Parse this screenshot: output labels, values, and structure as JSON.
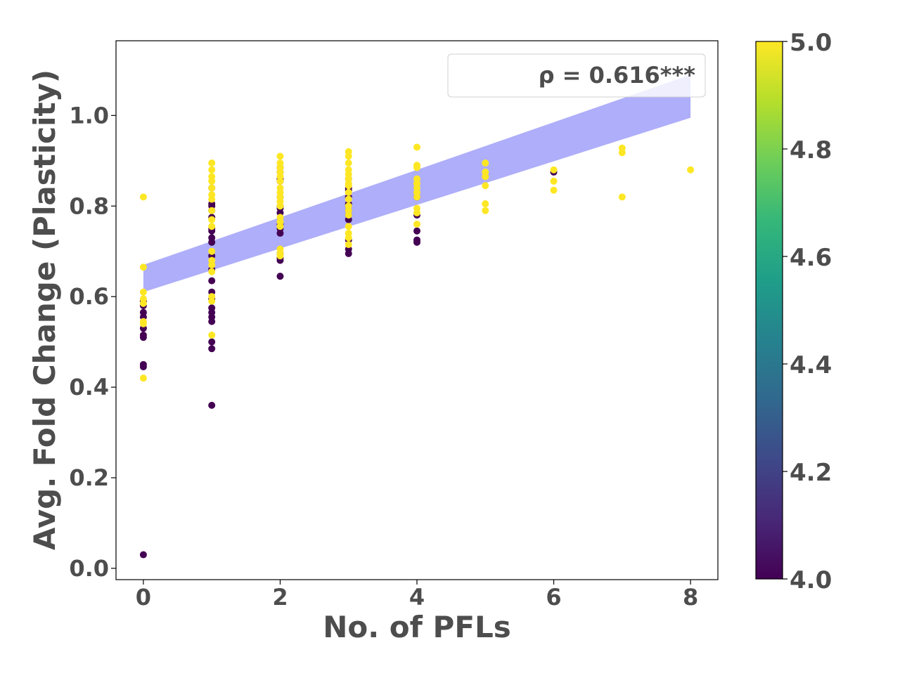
{
  "chart_data": {
    "type": "scatter",
    "xlabel": "No. of PFLs",
    "ylabel": "Avg. Fold Change (Plasticity)",
    "xlim": [
      -0.4,
      8.4
    ],
    "ylim": [
      -0.025,
      1.165
    ],
    "xticks": [
      0,
      2,
      4,
      6,
      8
    ],
    "yticks": [
      0.0,
      0.2,
      0.4,
      0.6,
      0.8,
      1.0
    ],
    "xtick_labels": [
      "0",
      "2",
      "4",
      "6",
      "8"
    ],
    "ytick_labels": [
      "0.0",
      "0.2",
      "0.4",
      "0.6",
      "0.8",
      "1.0"
    ],
    "annotation": "ρ = 0.616***",
    "grid": false,
    "colormap": "viridis",
    "colorbar": {
      "min": 4.0,
      "max": 5.0,
      "ticks": [
        4.0,
        4.2,
        4.4,
        4.6,
        4.8,
        5.0
      ],
      "tick_labels": [
        "4.0",
        "4.2",
        "4.4",
        "4.6",
        "4.8",
        "5.0"
      ],
      "stops": [
        "#440154",
        "#482878",
        "#3e4989",
        "#31688e",
        "#26828e",
        "#1f9e89",
        "#35b779",
        "#6ece58",
        "#b5de2b",
        "#fde725"
      ]
    },
    "regression_band": {
      "color": "#aeaefa",
      "x": [
        0,
        8
      ],
      "lower": [
        0.61,
        0.995
      ],
      "upper": [
        0.67,
        1.09
      ]
    },
    "series": [
      {
        "x": 0,
        "c": 4,
        "y": [
          0.03,
          0.445,
          0.45,
          0.51,
          0.515,
          0.53,
          0.555,
          0.565,
          0.58,
          0.59
        ]
      },
      {
        "x": 0,
        "c": 5,
        "y": [
          0.82,
          0.665,
          0.61,
          0.595,
          0.585,
          0.545,
          0.54,
          0.42
        ]
      },
      {
        "x": 1,
        "c": 4,
        "y": [
          0.36,
          0.485,
          0.5,
          0.545,
          0.555,
          0.565,
          0.575,
          0.595,
          0.61,
          0.635,
          0.66,
          0.69,
          0.72,
          0.73,
          0.745,
          0.75,
          0.775,
          0.79,
          0.8,
          0.805,
          0.84
        ]
      },
      {
        "x": 1,
        "c": 5,
        "y": [
          0.895,
          0.88,
          0.865,
          0.855,
          0.84,
          0.825,
          0.815,
          0.79,
          0.77,
          0.755,
          0.7,
          0.68,
          0.67,
          0.655,
          0.6,
          0.515,
          0.59
        ]
      },
      {
        "x": 2,
        "c": 4,
        "y": [
          0.645,
          0.68,
          0.685,
          0.695,
          0.74,
          0.75,
          0.76,
          0.785,
          0.795,
          0.8,
          0.82,
          0.855,
          0.86,
          0.875,
          0.885
        ]
      },
      {
        "x": 2,
        "c": 5,
        "y": [
          0.91,
          0.895,
          0.885,
          0.875,
          0.865,
          0.855,
          0.84,
          0.83,
          0.82,
          0.81,
          0.8,
          0.775,
          0.765,
          0.755,
          0.705,
          0.695,
          0.69
        ]
      },
      {
        "x": 3,
        "c": 4,
        "y": [
          0.695,
          0.705,
          0.725,
          0.77,
          0.78,
          0.79,
          0.8,
          0.805,
          0.82,
          0.835,
          0.84,
          0.86
        ]
      },
      {
        "x": 3,
        "c": 5,
        "y": [
          0.92,
          0.91,
          0.895,
          0.88,
          0.87,
          0.86,
          0.85,
          0.845,
          0.83,
          0.815,
          0.8,
          0.79,
          0.78,
          0.755,
          0.74,
          0.73,
          0.715
        ]
      },
      {
        "x": 4,
        "c": 4,
        "y": [
          0.72,
          0.725,
          0.745,
          0.78,
          0.82
        ]
      },
      {
        "x": 4,
        "c": 5,
        "y": [
          0.93,
          0.89,
          0.885,
          0.86,
          0.85,
          0.84,
          0.83,
          0.82,
          0.795,
          0.785,
          0.76
        ]
      },
      {
        "x": 5,
        "c": 5,
        "y": [
          0.895,
          0.875,
          0.865,
          0.845,
          0.805,
          0.79
        ]
      },
      {
        "x": 6,
        "c": 4,
        "y": [
          0.875
        ]
      },
      {
        "x": 6,
        "c": 5,
        "y": [
          0.88,
          0.855,
          0.835
        ]
      },
      {
        "x": 7,
        "c": 5,
        "y": [
          0.928,
          0.918,
          0.82
        ]
      },
      {
        "x": 8,
        "c": 5,
        "y": [
          0.88
        ]
      }
    ]
  }
}
